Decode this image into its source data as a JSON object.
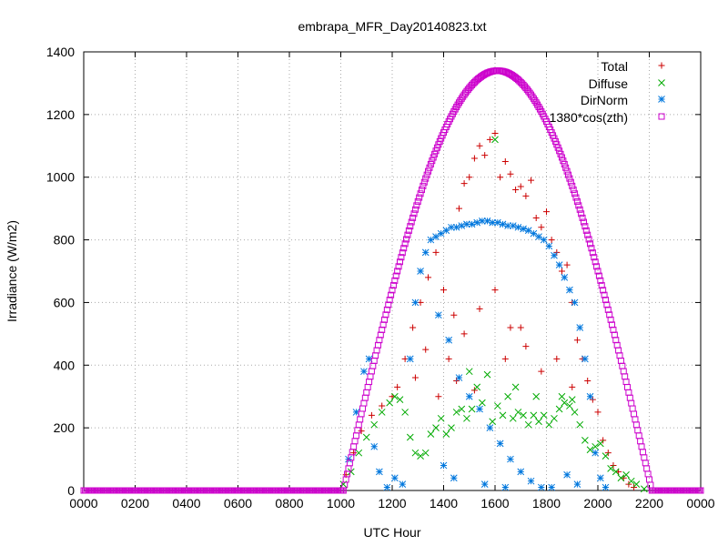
{
  "chart_data": {
    "type": "scatter",
    "title": "embrapa_MFR_Day20140823.txt",
    "xlabel": "UTC Hour",
    "ylabel": "Irradiance (W/m2)",
    "xlim": [
      0,
      24
    ],
    "ylim": [
      0,
      1400
    ],
    "xticks": [
      {
        "value": 0,
        "label": "0000"
      },
      {
        "value": 2,
        "label": "0200"
      },
      {
        "value": 4,
        "label": "0400"
      },
      {
        "value": 6,
        "label": "0600"
      },
      {
        "value": 8,
        "label": "0800"
      },
      {
        "value": 10,
        "label": "1000"
      },
      {
        "value": 12,
        "label": "1200"
      },
      {
        "value": 14,
        "label": "1400"
      },
      {
        "value": 16,
        "label": "1600"
      },
      {
        "value": 18,
        "label": "1800"
      },
      {
        "value": 20,
        "label": "2000"
      },
      {
        "value": 22,
        "label": "2200"
      },
      {
        "value": 24,
        "label": "0000"
      }
    ],
    "yticks": [
      {
        "value": 0,
        "label": "0"
      },
      {
        "value": 200,
        "label": "200"
      },
      {
        "value": 400,
        "label": "400"
      },
      {
        "value": 600,
        "label": "600"
      },
      {
        "value": 800,
        "label": "800"
      },
      {
        "value": 1000,
        "label": "1000"
      },
      {
        "value": 1200,
        "label": "1200"
      },
      {
        "value": 1400,
        "label": "1400"
      }
    ],
    "grid": true,
    "legend_position": "top-right",
    "series": [
      {
        "name": "Total",
        "marker": "plus",
        "color": "#cc0000",
        "points": [
          [
            10.2,
            50
          ],
          [
            10.5,
            120
          ],
          [
            10.8,
            190
          ],
          [
            11.2,
            240
          ],
          [
            11.6,
            270
          ],
          [
            12.0,
            300
          ],
          [
            12.2,
            330
          ],
          [
            12.5,
            420
          ],
          [
            12.8,
            520
          ],
          [
            13.1,
            600
          ],
          [
            13.4,
            680
          ],
          [
            13.7,
            760
          ],
          [
            14.0,
            640
          ],
          [
            14.2,
            420
          ],
          [
            14.4,
            560
          ],
          [
            14.6,
            900
          ],
          [
            14.8,
            980
          ],
          [
            15.0,
            1000
          ],
          [
            15.2,
            1060
          ],
          [
            15.4,
            1100
          ],
          [
            15.6,
            1070
          ],
          [
            15.8,
            1120
          ],
          [
            16.0,
            1140
          ],
          [
            16.2,
            1000
          ],
          [
            16.4,
            1050
          ],
          [
            16.6,
            1010
          ],
          [
            16.8,
            960
          ],
          [
            17.0,
            970
          ],
          [
            17.2,
            940
          ],
          [
            17.4,
            990
          ],
          [
            17.6,
            870
          ],
          [
            17.8,
            840
          ],
          [
            18.0,
            890
          ],
          [
            18.2,
            800
          ],
          [
            18.4,
            760
          ],
          [
            18.6,
            700
          ],
          [
            18.8,
            720
          ],
          [
            19.0,
            600
          ],
          [
            19.2,
            480
          ],
          [
            19.4,
            420
          ],
          [
            19.6,
            350
          ],
          [
            19.8,
            290
          ],
          [
            20.0,
            250
          ],
          [
            20.2,
            160
          ],
          [
            20.4,
            120
          ],
          [
            20.6,
            80
          ],
          [
            20.8,
            60
          ],
          [
            21.0,
            40
          ],
          [
            21.2,
            20
          ],
          [
            21.4,
            10
          ],
          [
            14.8,
            500
          ],
          [
            15.4,
            580
          ],
          [
            16.0,
            640
          ],
          [
            16.6,
            520
          ],
          [
            17.2,
            460
          ],
          [
            17.8,
            380
          ],
          [
            18.4,
            420
          ],
          [
            19.0,
            330
          ],
          [
            13.8,
            300
          ],
          [
            14.5,
            350
          ],
          [
            15.2,
            320
          ],
          [
            16.4,
            420
          ],
          [
            17.0,
            520
          ],
          [
            12.9,
            360
          ],
          [
            13.3,
            450
          ]
        ]
      },
      {
        "name": "Diffuse",
        "marker": "cross",
        "color": "#00aa00",
        "points": [
          [
            10.1,
            20
          ],
          [
            10.4,
            60
          ],
          [
            10.7,
            120
          ],
          [
            11.0,
            170
          ],
          [
            11.3,
            210
          ],
          [
            11.6,
            250
          ],
          [
            11.9,
            280
          ],
          [
            12.1,
            300
          ],
          [
            12.3,
            290
          ],
          [
            12.5,
            250
          ],
          [
            12.7,
            170
          ],
          [
            12.9,
            120
          ],
          [
            13.1,
            110
          ],
          [
            13.3,
            120
          ],
          [
            13.5,
            180
          ],
          [
            13.7,
            200
          ],
          [
            13.9,
            230
          ],
          [
            14.1,
            180
          ],
          [
            14.3,
            200
          ],
          [
            14.5,
            250
          ],
          [
            14.7,
            260
          ],
          [
            14.9,
            230
          ],
          [
            15.1,
            260
          ],
          [
            15.3,
            330
          ],
          [
            15.5,
            280
          ],
          [
            15.7,
            370
          ],
          [
            15.9,
            220
          ],
          [
            16.1,
            270
          ],
          [
            16.3,
            240
          ],
          [
            16.5,
            300
          ],
          [
            16.7,
            230
          ],
          [
            16.9,
            250
          ],
          [
            17.1,
            240
          ],
          [
            17.3,
            210
          ],
          [
            17.5,
            240
          ],
          [
            17.7,
            220
          ],
          [
            17.9,
            240
          ],
          [
            18.1,
            210
          ],
          [
            18.3,
            230
          ],
          [
            18.5,
            260
          ],
          [
            18.7,
            280
          ],
          [
            18.9,
            270
          ],
          [
            19.1,
            250
          ],
          [
            19.3,
            210
          ],
          [
            19.5,
            160
          ],
          [
            19.7,
            130
          ],
          [
            19.9,
            140
          ],
          [
            20.1,
            150
          ],
          [
            20.3,
            110
          ],
          [
            20.5,
            70
          ],
          [
            20.7,
            60
          ],
          [
            20.9,
            40
          ],
          [
            21.1,
            50
          ],
          [
            21.3,
            30
          ],
          [
            21.5,
            20
          ],
          [
            21.8,
            5
          ],
          [
            16.0,
            1120
          ],
          [
            15.0,
            380
          ],
          [
            16.8,
            330
          ],
          [
            17.6,
            300
          ],
          [
            18.6,
            300
          ],
          [
            19.0,
            290
          ]
        ]
      },
      {
        "name": "DirNorm",
        "marker": "star",
        "color": "#0077dd",
        "points": [
          [
            10.3,
            100
          ],
          [
            10.6,
            250
          ],
          [
            10.9,
            380
          ],
          [
            11.1,
            420
          ],
          [
            11.3,
            140
          ],
          [
            11.5,
            60
          ],
          [
            11.8,
            10
          ],
          [
            12.1,
            40
          ],
          [
            12.4,
            20
          ],
          [
            12.7,
            420
          ],
          [
            12.9,
            600
          ],
          [
            13.1,
            700
          ],
          [
            13.3,
            760
          ],
          [
            13.5,
            800
          ],
          [
            13.7,
            810
          ],
          [
            13.9,
            820
          ],
          [
            14.1,
            830
          ],
          [
            14.3,
            840
          ],
          [
            14.5,
            840
          ],
          [
            14.7,
            845
          ],
          [
            14.9,
            850
          ],
          [
            15.1,
            850
          ],
          [
            15.3,
            855
          ],
          [
            15.5,
            860
          ],
          [
            15.7,
            860
          ],
          [
            15.9,
            855
          ],
          [
            16.1,
            855
          ],
          [
            16.3,
            850
          ],
          [
            16.5,
            845
          ],
          [
            16.7,
            845
          ],
          [
            16.9,
            840
          ],
          [
            17.1,
            835
          ],
          [
            17.3,
            830
          ],
          [
            17.5,
            820
          ],
          [
            17.7,
            810
          ],
          [
            17.9,
            800
          ],
          [
            18.1,
            780
          ],
          [
            18.3,
            750
          ],
          [
            18.5,
            720
          ],
          [
            18.7,
            680
          ],
          [
            18.9,
            640
          ],
          [
            19.1,
            600
          ],
          [
            19.3,
            520
          ],
          [
            19.5,
            420
          ],
          [
            19.7,
            300
          ],
          [
            19.9,
            120
          ],
          [
            20.1,
            40
          ],
          [
            20.3,
            10
          ],
          [
            13.8,
            560
          ],
          [
            14.2,
            480
          ],
          [
            14.6,
            360
          ],
          [
            15.0,
            300
          ],
          [
            15.4,
            260
          ],
          [
            15.8,
            200
          ],
          [
            16.2,
            150
          ],
          [
            16.6,
            100
          ],
          [
            17.0,
            60
          ],
          [
            17.4,
            30
          ],
          [
            17.8,
            10
          ],
          [
            18.2,
            10
          ],
          [
            14.0,
            80
          ],
          [
            14.4,
            40
          ],
          [
            15.6,
            20
          ],
          [
            16.4,
            10
          ],
          [
            18.8,
            50
          ],
          [
            19.2,
            20
          ]
        ]
      },
      {
        "name": "1380*cos(zth)",
        "marker": "square",
        "color": "#cc00cc",
        "curve": {
          "start_hour": 10.1,
          "peak_hour": 16.1,
          "end_hour": 22.1,
          "peak_value": 1340
        }
      }
    ]
  }
}
